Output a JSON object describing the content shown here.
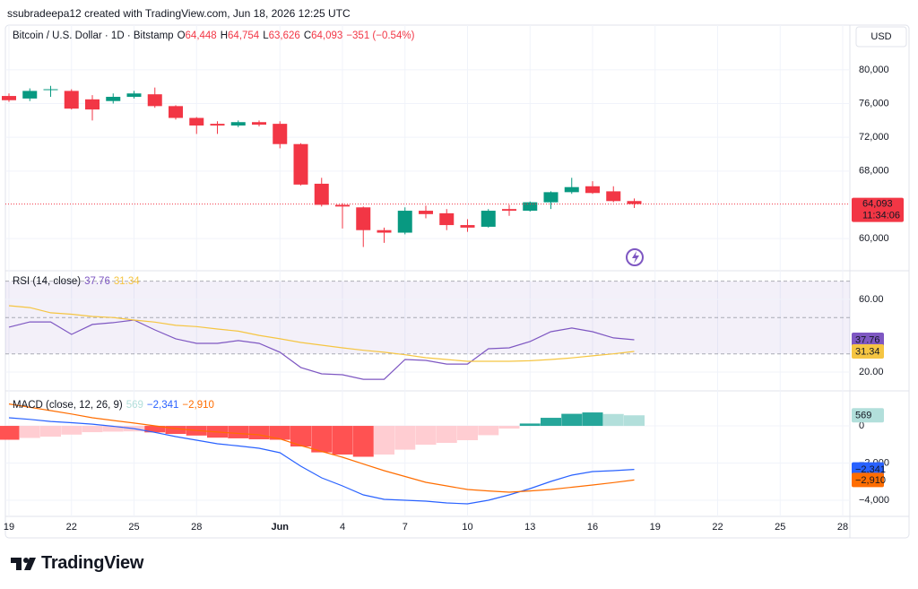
{
  "attribution": "ssubradeepa12 created with TradingView.com, Jun 18, 2026 12:25 UTC",
  "brand": "TradingView",
  "chart_data": [
    {
      "type": "candlestick",
      "title": "Bitcoin / U.S. Dollar · 1D · Bitstamp",
      "legend_values": [
        {
          "key": "O",
          "label": "64,448"
        },
        {
          "key": "H",
          "label": "64,754"
        },
        {
          "key": "L",
          "label": "63,626"
        },
        {
          "key": "C",
          "label": "64,093"
        }
      ],
      "change_label": "−351 (−0.54%)",
      "currency": "USD",
      "countdown": "11:34:06",
      "categories": [
        "19",
        null,
        null,
        "22",
        null,
        null,
        "25",
        null,
        null,
        "28",
        null,
        null,
        null,
        "Jun",
        null,
        null,
        "4",
        null,
        null,
        "7",
        null,
        null,
        "10",
        null,
        null,
        "13",
        null,
        null,
        "16",
        null,
        null,
        "19",
        null,
        null,
        "22",
        null,
        null,
        "25",
        null,
        null,
        "28"
      ],
      "open": [
        76900,
        76600,
        77600,
        77500,
        76500,
        76300,
        76800,
        77100,
        75700,
        74300,
        73600,
        73400,
        73800,
        73600,
        71200,
        66500,
        64000,
        63700,
        61000,
        60700,
        63300,
        63000,
        61600,
        61400,
        63500,
        63300,
        64300,
        65500,
        66200,
        65600,
        64448,
        null,
        null,
        null,
        null,
        null,
        null,
        null,
        null,
        null,
        null
      ],
      "high": [
        77200,
        77800,
        78100,
        77700,
        77000,
        77200,
        77500,
        77900,
        75800,
        74400,
        73900,
        74000,
        74000,
        73900,
        71300,
        67200,
        64200,
        63800,
        61300,
        63700,
        63900,
        63500,
        62300,
        63500,
        64000,
        64400,
        65600,
        67200,
        66800,
        66200,
        64754,
        null,
        null,
        null,
        null,
        null,
        null,
        null,
        null,
        null,
        null
      ],
      "low": [
        76200,
        76300,
        76800,
        75300,
        74000,
        76000,
        76600,
        75500,
        74100,
        72400,
        72400,
        73200,
        73300,
        70700,
        66300,
        63800,
        61200,
        59000,
        59500,
        60500,
        62400,
        61000,
        60800,
        61300,
        62700,
        63200,
        63500,
        65300,
        65300,
        64300,
        63626,
        null,
        null,
        null,
        null,
        null,
        null,
        null,
        null,
        null,
        null
      ],
      "close": [
        76400,
        77500,
        77700,
        75400,
        75300,
        76800,
        77200,
        75700,
        74300,
        73400,
        73400,
        73800,
        73500,
        71200,
        66400,
        64000,
        63800,
        61000,
        60700,
        63300,
        62900,
        61600,
        61300,
        63300,
        63300,
        64300,
        65500,
        66100,
        65400,
        64444,
        64093,
        null,
        null,
        null,
        null,
        null,
        null,
        null,
        null,
        null,
        null
      ],
      "up_color": "#089981",
      "down_color": "#f23645",
      "ylim": [
        56400,
        85300
      ],
      "yticks": [
        {
          "value": 60000,
          "label": "60,000"
        },
        {
          "value": 68000,
          "label": "68,000"
        },
        {
          "value": 72000,
          "label": "72,000"
        },
        {
          "value": 76000,
          "label": "76,000"
        },
        {
          "value": 80000,
          "label": "80,000"
        }
      ],
      "grid": true,
      "last_price_line": true
    },
    {
      "type": "line",
      "title": "RSI (14, close)",
      "series": [
        {
          "color": "#7e57c2",
          "values": [
            44.7,
            47.6,
            47.6,
            40.7,
            46.2,
            47.2,
            48.6,
            43.2,
            38.3,
            35.8,
            35.8,
            37.3,
            35.8,
            30.9,
            22.5,
            19.0,
            18.5,
            16.0,
            16.0,
            26.9,
            26.4,
            24.4,
            24.4,
            32.8,
            33.3,
            36.8,
            42.2,
            44.2,
            42.2,
            38.8,
            37.76
          ]
        },
        {
          "color": "#f5c542",
          "values": [
            56.5,
            55.5,
            52.6,
            51.8,
            50.6,
            50.0,
            48.6,
            47.5,
            45.7,
            45.0,
            43.7,
            42.5,
            40.2,
            38.3,
            36.3,
            34.8,
            33.3,
            32.0,
            30.9,
            29.5,
            27.9,
            26.9,
            25.9,
            25.9,
            25.9,
            26.2,
            26.9,
            27.8,
            28.9,
            30.0,
            31.34
          ]
        }
      ],
      "bands": [
        70,
        50,
        30
      ],
      "band_color": "#7e57c2",
      "ylim": [
        11.6,
        72.8
      ],
      "yticks": [
        {
          "value": 20,
          "label": "20.00"
        },
        {
          "value": 60,
          "label": "60.00"
        }
      ],
      "grid": true
    },
    {
      "type": "macd",
      "title": "MACD (close, 12, 26, 9)",
      "histogram": {
        "values": [
          -746,
          -650,
          -580,
          -470,
          -338,
          -310,
          -295,
          -350,
          -433,
          -520,
          -634,
          -670,
          -723,
          -746,
          -1109,
          -1425,
          -1542,
          -1661,
          -1542,
          -1280,
          -1012,
          -915,
          -771,
          -500,
          -145,
          127,
          434,
          649,
          723,
          640,
          569
        ],
        "colors": {
          "pos_grow": "#26a69a",
          "pos_fall": "#b2dfdb",
          "neg_grow": "#ff5252",
          "neg_fall": "#ffcdd2"
        }
      },
      "series": [
        {
          "color": "#2962ff",
          "values": [
            434,
            350,
            240,
            170,
            96,
            -20,
            -145,
            -350,
            -578,
            -770,
            -964,
            -1080,
            -1205,
            -1446,
            -2169,
            -2795,
            -3229,
            -3711,
            -3952,
            -4000,
            -4048,
            -4145,
            -4193,
            -4000,
            -3711,
            -3373,
            -2988,
            -2651,
            -2458,
            -2410,
            -2341
          ],
          "value_labels": [
            null,
            null,
            null,
            null,
            null,
            null,
            null,
            null,
            null,
            null,
            null,
            null,
            null,
            null,
            null,
            null,
            null,
            null,
            null,
            null,
            null,
            null,
            null,
            null,
            null,
            null,
            null,
            null,
            null,
            null,
            "−2,341"
          ]
        },
        {
          "color": "#ff6d00",
          "values": [
            1180,
            1000,
            820,
            640,
            434,
            290,
            150,
            0,
            -145,
            -250,
            -330,
            -410,
            -482,
            -700,
            -1060,
            -1370,
            -1687,
            -2050,
            -2410,
            -2720,
            -3036,
            -3230,
            -3422,
            -3500,
            -3566,
            -3500,
            -3422,
            -3300,
            -3181,
            -3050,
            -2910
          ],
          "value_labels": [
            null,
            null,
            null,
            null,
            null,
            null,
            null,
            null,
            null,
            null,
            null,
            null,
            null,
            null,
            null,
            null,
            null,
            null,
            null,
            null,
            null,
            null,
            null,
            null,
            null,
            null,
            null,
            null,
            null,
            null,
            "−2,910"
          ]
        }
      ],
      "ylim": [
        -4820,
        1690
      ],
      "yticks": [
        {
          "value": -4000,
          "label": "−4,000"
        },
        {
          "value": -2000,
          "label": "−2,000"
        },
        0
      ],
      "grid": true
    }
  ]
}
